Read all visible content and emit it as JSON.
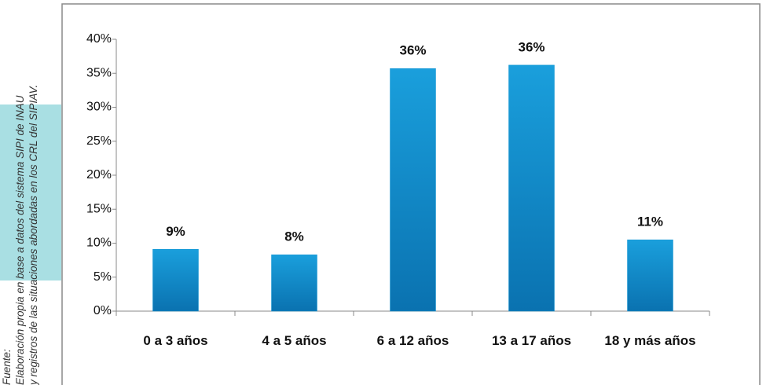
{
  "source": {
    "label": "Fuente:",
    "lines": [
      "Elaboración propia en base a datos del sistema SIPI de INAU",
      "y registros de las situaciones abordadas en los CRL del SIPIAV."
    ]
  },
  "chart_data": {
    "type": "bar",
    "categories": [
      "0 a 3 años",
      "4 a 5 años",
      "6 a 12 años",
      "13 a 17 años",
      "18 y más años"
    ],
    "values": [
      9.1,
      8.3,
      35.7,
      36.2,
      10.5
    ],
    "value_labels": [
      "9%",
      "8%",
      "36%",
      "36%",
      "11%"
    ],
    "color": "#1295d3",
    "ylim": [
      0,
      40
    ],
    "yticks": [
      {
        "value": 0,
        "label": "0%"
      },
      {
        "value": 5,
        "label": "5%"
      },
      {
        "value": 10,
        "label": "10%"
      },
      {
        "value": 15,
        "label": "15%"
      },
      {
        "value": 20,
        "label": "20%"
      },
      {
        "value": 25,
        "label": "25%"
      },
      {
        "value": 30,
        "label": "30%"
      },
      {
        "value": 35,
        "label": "35%"
      },
      {
        "value": 40,
        "label": "40%"
      }
    ],
    "grid": false
  }
}
